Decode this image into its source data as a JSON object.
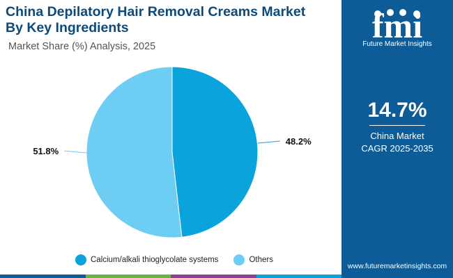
{
  "title_line1": "China Depilatory Hair Removal Creams Market",
  "title_line2": "By Key Ingredients",
  "subtitle": "Market Share (%) Analysis, 2025",
  "colors": {
    "brand_dark": "#0b4a7a",
    "sidebar": "#0e5c97",
    "series_1": "#0aa3dc",
    "series_2": "#6dcdf3"
  },
  "chart_data": {
    "type": "pie",
    "categories": [
      "Calcium/alkali thioglycolate systems",
      "Others"
    ],
    "values": [
      48.2,
      51.8
    ],
    "data_labels": [
      "48.2%",
      "51.8%"
    ],
    "colors": [
      "#0aa3dc",
      "#6dcdf3"
    ],
    "legend_position": "bottom"
  },
  "sidebar": {
    "logo_text": "fmi",
    "logo_tagline": "Future Market Insights",
    "cagr_value": "14.7%",
    "cagr_label_1": "China Market",
    "cagr_label_2": "CAGR 2025-2035",
    "website": "www.futuremarketinsights.com"
  },
  "bottom_bar_colors": [
    "#0e5c97",
    "#6cb33f",
    "#8e3f97",
    "#0aa3dc"
  ]
}
